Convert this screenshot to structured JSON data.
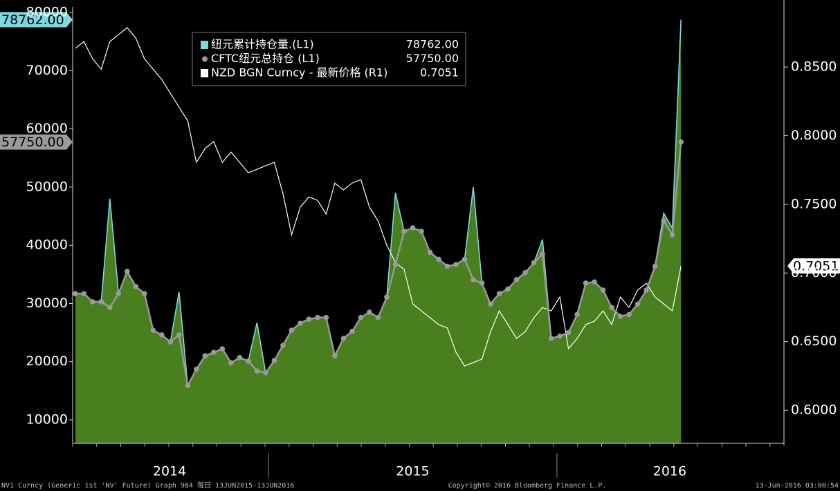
{
  "chart_data": {
    "type": "line",
    "legend": "top-left",
    "grid": false,
    "x": [
      2014.33,
      2014.36,
      2014.39,
      2014.42,
      2014.45,
      2014.48,
      2014.51,
      2014.54,
      2014.57,
      2014.6,
      2014.63,
      2014.66,
      2014.69,
      2014.72,
      2014.75,
      2014.78,
      2014.81,
      2014.84,
      2014.87,
      2014.9,
      2014.93,
      2014.96,
      2014.99,
      2015.02,
      2015.05,
      2015.08,
      2015.11,
      2015.14,
      2015.17,
      2015.2,
      2015.23,
      2015.26,
      2015.29,
      2015.32,
      2015.35,
      2015.38,
      2015.41,
      2015.44,
      2015.47,
      2015.5,
      2015.53,
      2015.56,
      2015.59,
      2015.62,
      2015.65,
      2015.68,
      2015.71,
      2015.74,
      2015.77,
      2015.8,
      2015.83,
      2015.86,
      2015.89,
      2015.92,
      2015.95,
      2015.98,
      2016.01,
      2016.04,
      2016.07,
      2016.1,
      2016.13,
      2016.16,
      2016.19,
      2016.22,
      2016.25,
      2016.28,
      2016.31,
      2016.34,
      2016.37,
      2016.4,
      2016.43
    ],
    "xlim": [
      2014.321,
      2016.787
    ],
    "xticks": [
      {
        "value": 2014.657,
        "label": "2014"
      },
      {
        "value": 2015.5,
        "label": "2015"
      },
      {
        "value": 2016.391,
        "label": "2016"
      }
    ],
    "year_boundaries": [
      2015,
      2016
    ],
    "ylim": [
      5970,
      80360
    ],
    "yticks": [
      10000,
      20000,
      30000,
      40000,
      50000,
      60000,
      70000,
      80000
    ],
    "y2lim": [
      0.5759,
      0.8913
    ],
    "y2ticks": [
      {
        "value": 0.6,
        "label": "0.6000"
      },
      {
        "value": 0.65,
        "label": "0.6500"
      },
      {
        "value": 0.7,
        "label": "0.7000"
      },
      {
        "value": 0.75,
        "label": "0.7500"
      },
      {
        "value": 0.8,
        "label": "0.8000"
      },
      {
        "value": 0.85,
        "label": "0.8500"
      }
    ],
    "series": [
      {
        "name": "纽元累计持仓量.(L1)",
        "color": "#7fd8e0",
        "fill": "#4a7f20",
        "style": "area",
        "axis": "y",
        "values": [
          31700,
          31700,
          30300,
          30300,
          48000,
          31700,
          35500,
          32900,
          31700,
          25400,
          24600,
          23400,
          32000,
          15900,
          18700,
          21000,
          21600,
          22200,
          19800,
          20700,
          20100,
          26700,
          18100,
          20200,
          22800,
          25400,
          26600,
          27300,
          27600,
          27600,
          21000,
          24000,
          25200,
          27600,
          28500,
          27600,
          31100,
          49000,
          42400,
          43000,
          42400,
          38800,
          37600,
          36400,
          36700,
          37600,
          50000,
          33500,
          29900,
          31700,
          32500,
          34100,
          35300,
          37000,
          41000,
          24000,
          24400,
          25000,
          28100,
          33500,
          33700,
          32300,
          29300,
          27800,
          28100,
          29900,
          32300,
          36400,
          45500,
          43000,
          78762
        ],
        "value_labels": [
          null,
          null,
          null,
          null,
          null,
          null,
          null,
          null,
          null,
          null,
          null,
          null,
          null,
          null,
          null,
          null,
          null,
          null,
          null,
          null,
          null,
          null,
          null,
          null,
          null,
          null,
          null,
          null,
          null,
          null,
          null,
          null,
          null,
          null,
          null,
          null,
          null,
          null,
          null,
          null,
          null,
          null,
          null,
          null,
          null,
          null,
          null,
          null,
          null,
          null,
          null,
          null,
          null,
          null,
          null,
          null,
          null,
          null,
          null,
          null,
          null,
          null,
          null,
          null,
          null,
          null,
          null,
          null,
          null,
          null,
          "78762.00"
        ]
      },
      {
        "name": "CFTC纽元总持仓 (L1)",
        "color": "#9a9a9a",
        "style": "dots",
        "axis": "y",
        "values": [
          31700,
          31700,
          30300,
          30300,
          29300,
          31700,
          35500,
          32900,
          31700,
          25400,
          24600,
          23400,
          24600,
          15900,
          18700,
          21000,
          21600,
          22200,
          19800,
          20700,
          20100,
          18400,
          18100,
          20200,
          22800,
          25400,
          26600,
          27300,
          27600,
          27600,
          21000,
          24000,
          25200,
          27600,
          28500,
          27600,
          31100,
          36700,
          42400,
          43000,
          42400,
          38800,
          37600,
          36400,
          36700,
          37600,
          34100,
          33500,
          29900,
          31700,
          32500,
          34100,
          35300,
          37000,
          38500,
          24000,
          24400,
          25000,
          28100,
          33500,
          33700,
          32300,
          29300,
          27800,
          28100,
          29900,
          32300,
          36400,
          44200,
          41800,
          57750
        ],
        "value_labels": [
          null,
          null,
          null,
          null,
          null,
          null,
          null,
          null,
          null,
          null,
          null,
          null,
          null,
          null,
          null,
          null,
          null,
          null,
          null,
          null,
          null,
          null,
          null,
          null,
          null,
          null,
          null,
          null,
          null,
          null,
          null,
          null,
          null,
          null,
          null,
          null,
          null,
          null,
          null,
          null,
          null,
          null,
          null,
          null,
          null,
          null,
          null,
          null,
          null,
          null,
          null,
          null,
          null,
          null,
          null,
          null,
          null,
          null,
          null,
          null,
          null,
          null,
          null,
          null,
          null,
          null,
          null,
          null,
          null,
          null,
          "57750.00"
        ]
      },
      {
        "name": "NZD BGN Curncy - 最新价格 (R1)",
        "color": "#ffffff",
        "style": "line",
        "axis": "y2",
        "values": [
          0.8636,
          0.8686,
          0.856,
          0.8485,
          0.8686,
          0.8736,
          0.8787,
          0.8711,
          0.856,
          0.8485,
          0.8409,
          0.8309,
          0.8208,
          0.8108,
          0.7806,
          0.7906,
          0.7957,
          0.7806,
          0.7881,
          0.7806,
          0.773,
          0.7755,
          0.7781,
          0.7806,
          0.7579,
          0.7278,
          0.7479,
          0.7554,
          0.7529,
          0.7429,
          0.7655,
          0.7605,
          0.7655,
          0.768,
          0.7479,
          0.7378,
          0.7202,
          0.7076,
          0.7026,
          0.6775,
          0.6724,
          0.6674,
          0.6624,
          0.6599,
          0.6423,
          0.6322,
          0.6347,
          0.6372,
          0.6573,
          0.6724,
          0.6624,
          0.6523,
          0.6573,
          0.6674,
          0.6749,
          0.6724,
          0.6825,
          0.6448,
          0.6523,
          0.6624,
          0.6649,
          0.6724,
          0.6624,
          0.6825,
          0.6749,
          0.6875,
          0.6926,
          0.6825,
          0.6775,
          0.6724,
          0.7051
        ],
        "value_labels": [
          null,
          null,
          null,
          null,
          null,
          null,
          null,
          null,
          null,
          null,
          null,
          null,
          null,
          null,
          null,
          null,
          null,
          null,
          null,
          null,
          null,
          null,
          null,
          null,
          null,
          null,
          null,
          null,
          null,
          null,
          null,
          null,
          null,
          null,
          null,
          null,
          null,
          null,
          null,
          null,
          null,
          null,
          null,
          null,
          null,
          null,
          null,
          null,
          null,
          null,
          null,
          null,
          null,
          null,
          null,
          null,
          null,
          null,
          null,
          null,
          null,
          null,
          null,
          null,
          null,
          null,
          null,
          null,
          null,
          null,
          "0.7051"
        ]
      }
    ],
    "footer": [
      "NV1 Curncy (Generic 1st 'NV' Future) Graph 984  每日 13JUN2015-13JUN2016",
      "Copyright© 2016 Bloomberg Finance L.P.",
      "13-Jun-2016 03:00:54"
    ]
  }
}
